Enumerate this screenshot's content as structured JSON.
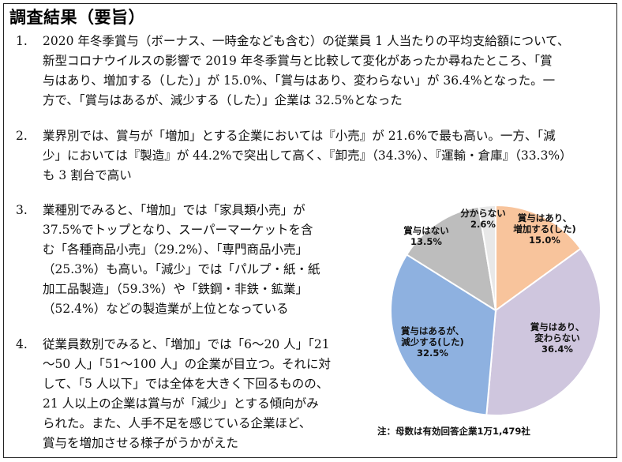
{
  "title": "調査結果（要旨）",
  "items": [
    {
      "num": "1.",
      "lines": [
        "2020 年冬季賞与（ボーナス、一時金なども含む）の従業員 1 人当たりの平均支給額について、",
        "新型コロナウイルスの影響で 2019 年冬季賞与と比較して変化があったか尋ねたところ、「賞",
        "与はあり、増加する（した）」が 15.0%、「賞与はあり、変わらない」が 36.4%となった。一",
        "方で、「賞与はあるが、減少する（した）」企業は 32.5%となった"
      ]
    },
    {
      "num": "2.",
      "lines": [
        "業界別では、賞与が「増加」とする企業においては『小売』が 21.6%で最も高い。一方、「減",
        "少」においては『製造』が 44.2%で突出して高く、『卸売』（34.3%）、『運輸・倉庫』（33.3%）",
        "も 3 割台で高い"
      ]
    },
    {
      "num": "3.",
      "lines": [
        "業種別でみると、「増加」では「家具類小売」が",
        "37.5%でトップとなり、スーパーマーケットを含",
        "む「各種商品小売」（29.2%）、「専門商品小売」",
        "（25.3%）も高い。「減少」では「パルプ・紙・紙",
        "加工品製造」（59.3%）や「鉄鋼・非鉄・鉱業」",
        "（52.4%）などの製造業が上位となっている"
      ]
    },
    {
      "num": "4.",
      "lines": [
        "従業員数別でみると、「増加」では「6～20 人」「21",
        "～50 人」「51～100 人」の企業が目立つ。それに対",
        "して、「5 人以下」では全体を大きく下回るものの、",
        "21 人以上の企業は賞与が「減少」とする傾向がみ",
        "られた。また、人手不足を感じている企業ほど、",
        "賞与を増加させる様子がうかがえた"
      ]
    }
  ],
  "chart_data": {
    "type": "pie",
    "title": "",
    "slices": [
      {
        "label": "賞与はあり、増加する(した)",
        "label_lines": [
          "賞与はあり、",
          "増加する(した)"
        ],
        "value": 15.0,
        "value_text": "15.0%",
        "color": "#f8c49c"
      },
      {
        "label": "賞与はあり、変わらない",
        "label_lines": [
          "賞与はあり、",
          "変わらない"
        ],
        "value": 36.4,
        "value_text": "36.4%",
        "color": "#cfc6de"
      },
      {
        "label": "賞与はあるが、減少する(した)",
        "label_lines": [
          "賞与はあるが、",
          "減少する(した)"
        ],
        "value": 32.5,
        "value_text": "32.5%",
        "color": "#8eb1e0"
      },
      {
        "label": "賞与はない",
        "label_lines": [
          "賞与はない"
        ],
        "value": 13.5,
        "value_text": "13.5%",
        "color": "#bdbdbd"
      },
      {
        "label": "分からない",
        "label_lines": [
          "分からない"
        ],
        "value": 2.6,
        "value_text": "2.6%",
        "color": "#e8e8e8"
      }
    ],
    "note": "注：母数は有効回答企業1万1,479社"
  }
}
